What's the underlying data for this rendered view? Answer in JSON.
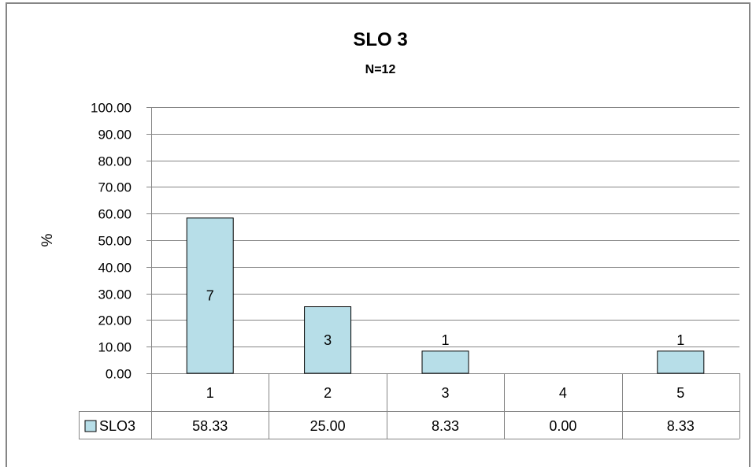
{
  "chart_data": {
    "type": "bar",
    "title": "SLO 3",
    "subtitle": "N=12",
    "ylabel": "%",
    "xlabel": "",
    "categories": [
      "1",
      "2",
      "3",
      "4",
      "5"
    ],
    "ylim": [
      0,
      100
    ],
    "yticks": [
      "100.00",
      "90.00",
      "80.00",
      "70.00",
      "60.00",
      "50.00",
      "40.00",
      "30.00",
      "20.00",
      "10.00",
      "0.00"
    ],
    "series": [
      {
        "name": "SLO3",
        "values": [
          58.33,
          25.0,
          8.33,
          0.0,
          8.33
        ],
        "table_values": [
          "58.33",
          "25.00",
          "8.33",
          "0.00",
          "8.33"
        ],
        "data_labels": [
          "7",
          "3",
          "1",
          "",
          "1"
        ],
        "color": "#B7DEE8"
      }
    ],
    "grid": true,
    "legend": "data-table",
    "bar_border_color": "#000000",
    "grid_color": "#868686"
  }
}
